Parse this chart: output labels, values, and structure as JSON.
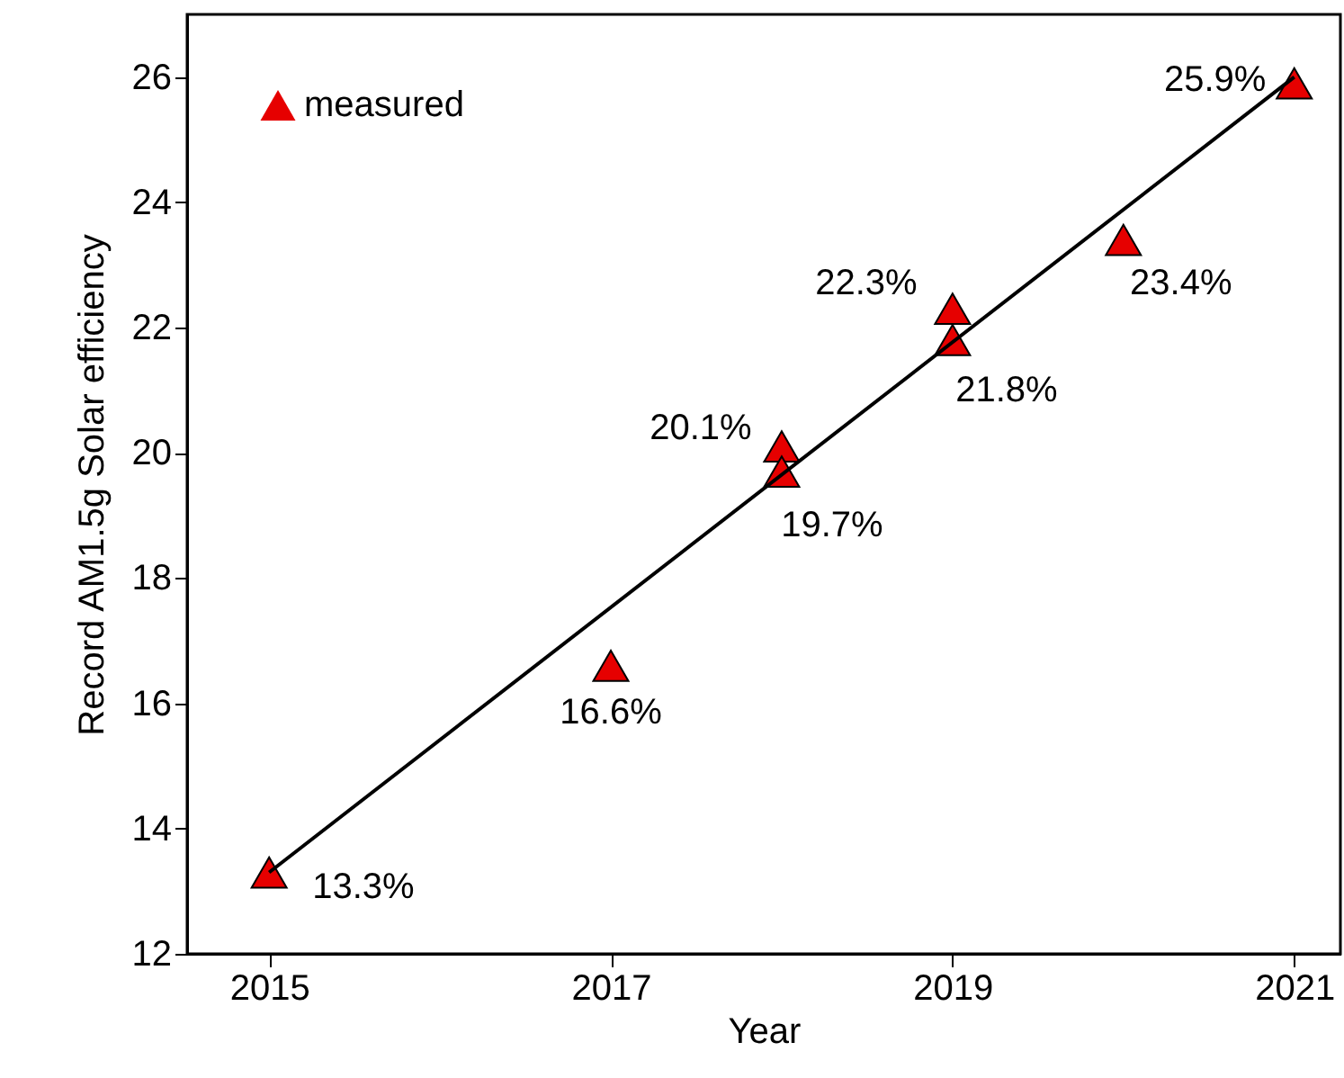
{
  "chart_data": {
    "type": "scatter",
    "xlabel": "Year",
    "ylabel": "Record AM1.5g Solar efficiency",
    "xlim": [
      2014.52,
      2021.27
    ],
    "xticks": [
      2015,
      2017,
      2019,
      2021
    ],
    "ylim": [
      12,
      27
    ],
    "yticks": [
      12,
      14,
      16,
      18,
      20,
      22,
      24,
      26
    ],
    "grid": false,
    "legend": "top left",
    "marker": "triangle",
    "series": [
      {
        "name": "measured",
        "color": "#e60000",
        "x": [
          2015,
          2017,
          2018,
          2018,
          2019,
          2019,
          2020,
          2021
        ],
        "values": [
          13.3,
          16.6,
          20.1,
          19.7,
          22.3,
          21.8,
          23.4,
          25.9
        ],
        "value_labels": [
          "13.3%",
          "16.6%",
          "20.1%",
          "19.7%",
          "22.3%",
          "21.8%",
          "23.4%",
          "25.9%"
        ]
      },
      {
        "type": "line",
        "color": "#000000",
        "x": [
          2015,
          2021
        ],
        "values": [
          13.3,
          26.0
        ],
        "line_style": "solid",
        "marker": "none"
      }
    ]
  }
}
